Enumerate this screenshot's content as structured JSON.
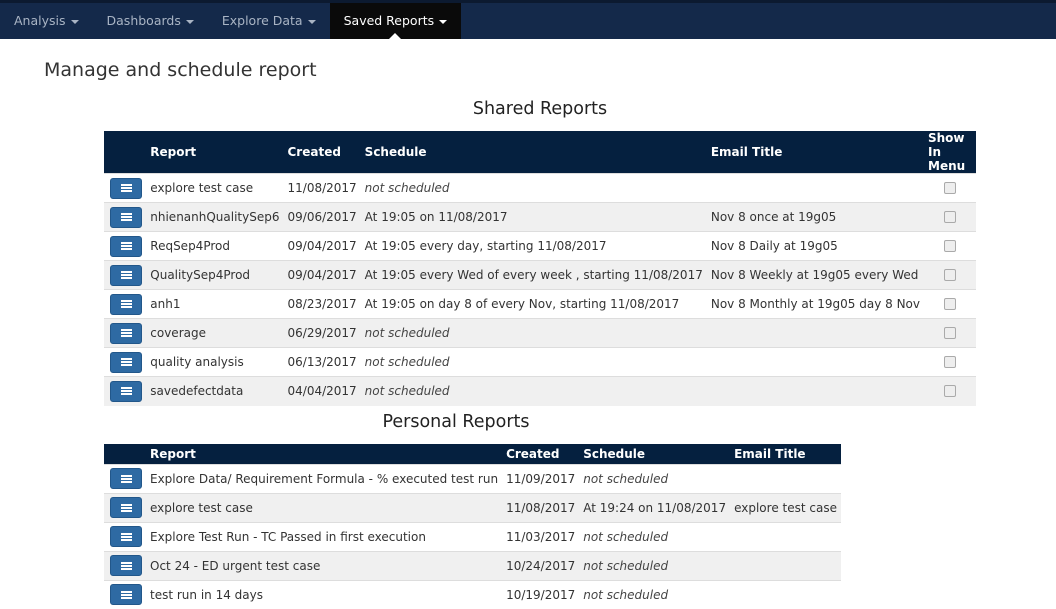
{
  "nav": {
    "items": [
      {
        "label": "Analysis"
      },
      {
        "label": "Dashboards"
      },
      {
        "label": "Explore Data"
      },
      {
        "label": "Saved Reports",
        "active": true
      }
    ]
  },
  "page_title": "Manage and schedule report",
  "shared": {
    "title": "Shared Reports",
    "columns": [
      "Report",
      "Created",
      "Schedule",
      "Email Title",
      "Show In Menu"
    ],
    "rows": [
      {
        "report": "explore test case",
        "created": "11/08/2017",
        "schedule": "not scheduled",
        "email": "",
        "scheduled": false
      },
      {
        "report": "nhienanhQualitySep6",
        "created": "09/06/2017",
        "schedule": "At 19:05 on 11/08/2017",
        "email": "Nov 8 once at 19g05",
        "scheduled": true
      },
      {
        "report": "ReqSep4Prod",
        "created": "09/04/2017",
        "schedule": "At 19:05 every day, starting 11/08/2017",
        "email": "Nov 8 Daily at 19g05",
        "scheduled": true
      },
      {
        "report": "QualitySep4Prod",
        "created": "09/04/2017",
        "schedule": "At 19:05 every Wed of every week , starting 11/08/2017",
        "email": "Nov 8 Weekly at 19g05 every Wed",
        "scheduled": true
      },
      {
        "report": "anh1",
        "created": "08/23/2017",
        "schedule": "At 19:05 on day 8 of every Nov, starting 11/08/2017",
        "email": "Nov 8 Monthly at 19g05 day 8 Nov",
        "scheduled": true
      },
      {
        "report": "coverage",
        "created": "06/29/2017",
        "schedule": "not scheduled",
        "email": "",
        "scheduled": false
      },
      {
        "report": "quality analysis",
        "created": "06/13/2017",
        "schedule": "not scheduled",
        "email": "",
        "scheduled": false
      },
      {
        "report": "savedefectdata",
        "created": "04/04/2017",
        "schedule": "not scheduled",
        "email": "",
        "scheduled": false
      }
    ]
  },
  "personal": {
    "title": "Personal Reports",
    "columns": [
      "Report",
      "Created",
      "Schedule",
      "Email Title"
    ],
    "rows": [
      {
        "report": "Explore Data/ Requirement Formula - % executed test run",
        "created": "11/09/2017",
        "schedule": "not scheduled",
        "email": "",
        "scheduled": false
      },
      {
        "report": "explore test case",
        "created": "11/08/2017",
        "schedule": "At 19:24 on 11/08/2017",
        "email": "explore test case",
        "scheduled": true
      },
      {
        "report": "Explore Test Run - TC Passed in first execution",
        "created": "11/03/2017",
        "schedule": "not scheduled",
        "email": "",
        "scheduled": false
      },
      {
        "report": "Oct 24 - ED urgent test case",
        "created": "10/24/2017",
        "schedule": "not scheduled",
        "email": "",
        "scheduled": false
      },
      {
        "report": "test run in 14 days",
        "created": "10/19/2017",
        "schedule": "not scheduled",
        "email": "",
        "scheduled": false
      }
    ]
  }
}
